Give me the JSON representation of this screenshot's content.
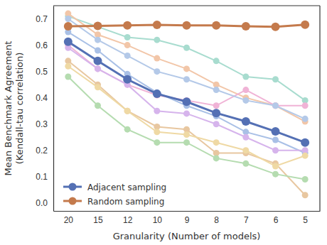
{
  "chart_data": {
    "type": "line",
    "x_label": "Granularity (Number of models)",
    "y_label": [
      "Mean Benchmark Agreement",
      "(Kendall-tau correlation)"
    ],
    "categories": [
      "20",
      "15",
      "12",
      "10",
      "9",
      "8",
      "7",
      "6",
      "5"
    ],
    "ylim": [
      -0.03,
      0.75
    ],
    "yticks": [
      {
        "value": 0,
        "label": "0.0"
      },
      0.1,
      0.2,
      0.3,
      0.4,
      0.5,
      0.6,
      0.7
    ],
    "grid": false,
    "legend": "lower left",
    "marker": "o",
    "series": [
      {
        "color": "#a8dccf",
        "values": [
          0.71,
          0.67,
          0.63,
          0.62,
          0.59,
          0.54,
          0.48,
          0.47,
          0.39
        ]
      },
      {
        "color": "#f2c6a8",
        "values": [
          0.72,
          0.64,
          0.6,
          0.55,
          0.51,
          0.45,
          0.4,
          0.37,
          0.31
        ]
      },
      {
        "color": "#f0b3d6",
        "values": [
          0.6,
          0.51,
          0.45,
          0.41,
          0.39,
          0.37,
          0.43,
          0.37,
          0.37
        ]
      },
      {
        "color": "#b4c9e8",
        "values": [
          0.7,
          0.62,
          0.56,
          0.5,
          0.47,
          0.43,
          0.39,
          0.37,
          0.32
        ]
      },
      {
        "color": "#a9c0e6",
        "values": [
          0.65,
          0.58,
          0.49,
          0.42,
          0.37,
          0.33,
          0.27,
          0.24,
          0.19
        ]
      },
      {
        "color": "#d6b4ec",
        "values": [
          0.59,
          0.51,
          0.45,
          0.35,
          0.34,
          0.3,
          0.25,
          0.2,
          0.2
        ]
      },
      {
        "color": "#e8c7a0",
        "values": [
          0.54,
          0.45,
          0.35,
          0.29,
          0.28,
          0.19,
          0.19,
          0.15,
          0.03
        ]
      },
      {
        "color": "#efd9a4",
        "values": [
          0.52,
          0.44,
          0.35,
          0.27,
          0.26,
          0.23,
          0.2,
          0.14,
          0.18
        ]
      },
      {
        "color": "#b5dcb0",
        "values": [
          0.48,
          0.37,
          0.28,
          0.23,
          0.23,
          0.17,
          0.15,
          0.11,
          0.09
        ]
      },
      {
        "name": "Adjacent sampling",
        "color": "#5470b4",
        "values": [
          0.613,
          0.54,
          0.47,
          0.415,
          0.385,
          0.342,
          0.31,
          0.272,
          0.23
        ]
      },
      {
        "name": "Random sampling",
        "color": "#c47a4c",
        "values": [
          0.672,
          0.673,
          0.675,
          0.677,
          0.675,
          0.675,
          0.672,
          0.67,
          0.678
        ]
      }
    ]
  }
}
